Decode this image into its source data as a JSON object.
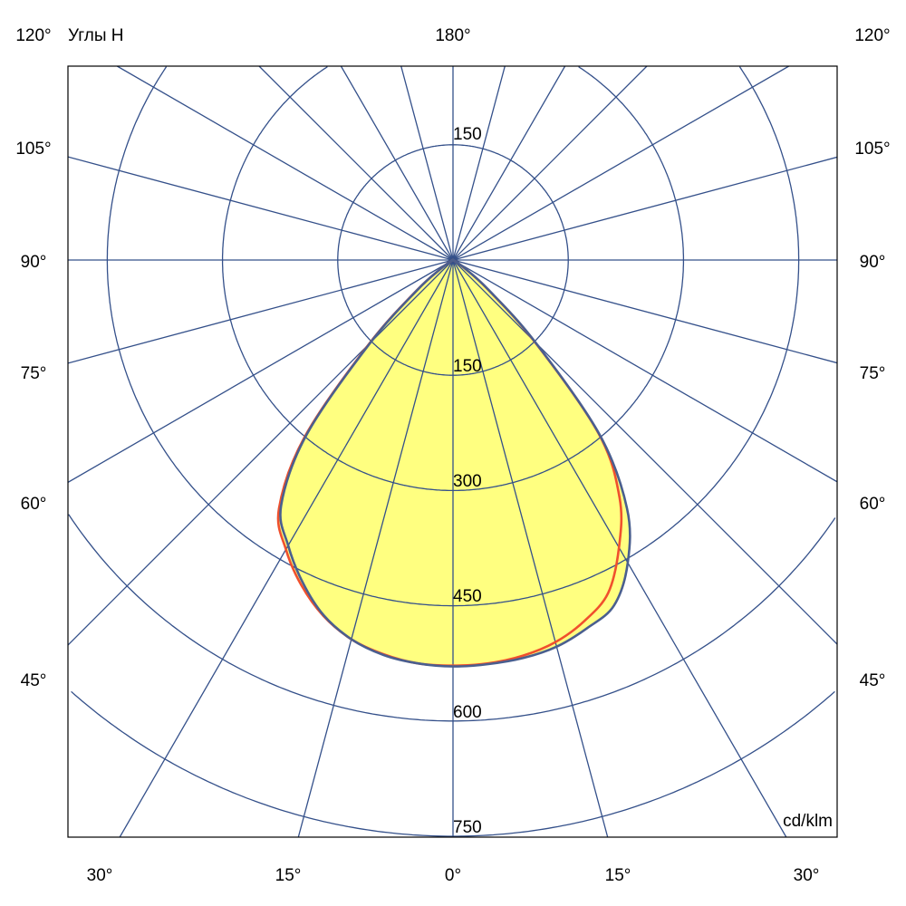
{
  "chart_data": {
    "type": "polar",
    "title": "Углы H",
    "unit_label": "cd/klm",
    "radial_ticks": [
      150,
      300,
      450,
      600,
      750
    ],
    "radial_range": [
      0,
      750
    ],
    "angle_step_deg": 15,
    "top_angle_label": "180°",
    "side_angle_labels": [
      "120°",
      "105°",
      "90°",
      "75°",
      "60°",
      "45°"
    ],
    "bottom_angle_labels": [
      "30°",
      "15°",
      "0°",
      "15°",
      "30°"
    ],
    "grid": true,
    "fill_color": "#FFFF80",
    "grid_color": "#34508A",
    "angles_deg": [
      -90,
      -85,
      -80,
      -75,
      -70,
      -65,
      -60,
      -55,
      -50,
      -45,
      -40,
      -35,
      -30,
      -25,
      -20,
      -15,
      -10,
      -5,
      0,
      5,
      10,
      15,
      20,
      25,
      30,
      35,
      40,
      45,
      50,
      55,
      60,
      65,
      70,
      75,
      80,
      85,
      90
    ],
    "series": [
      {
        "color": "#4A5F8F",
        "values": [
          0,
          0,
          0,
          0,
          0,
          0,
          3,
          18,
          60,
          152,
          296,
          390,
          429,
          463,
          492,
          511,
          522,
          527,
          529,
          528,
          526,
          521,
          510,
          496,
          455,
          395,
          297,
          152,
          60,
          18,
          3,
          0,
          0,
          0,
          0,
          0,
          0
        ]
      },
      {
        "color": "#F0502D",
        "values": [
          0,
          0,
          0,
          0,
          0,
          0,
          3,
          18,
          62,
          155,
          300,
          395,
          435,
          467,
          493,
          511,
          521,
          527,
          528,
          527,
          523,
          515,
          500,
          478,
          432,
          378,
          295,
          150,
          58,
          17,
          3,
          0,
          0,
          0,
          0,
          0,
          0
        ]
      }
    ]
  }
}
